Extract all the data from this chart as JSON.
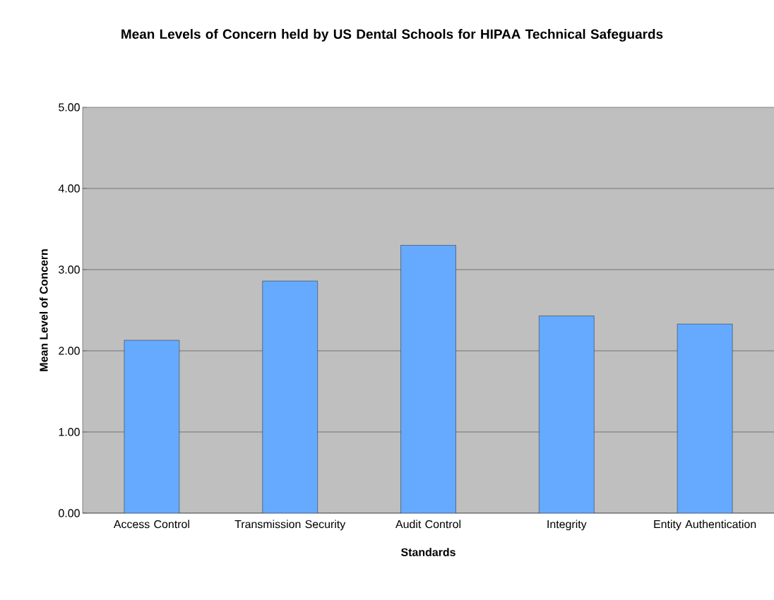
{
  "chart_data": {
    "type": "bar",
    "title": "Mean Levels of Concern held by US Dental Schools for HIPAA Technical Safeguards",
    "xlabel": "Standards",
    "ylabel": "Mean Level of Concern",
    "categories": [
      "Access Control",
      "Transmission Security",
      "Audit Control",
      "Integrity",
      "Entity Authentication"
    ],
    "values": [
      2.13,
      2.86,
      3.3,
      2.43,
      2.33
    ],
    "color": "#66aaff",
    "ylim": [
      0,
      5
    ],
    "yticks": [
      {
        "value": 0,
        "label": "0.00"
      },
      {
        "value": 1,
        "label": "1.00"
      },
      {
        "value": 2,
        "label": "2.00"
      },
      {
        "value": 3,
        "label": "3.00"
      },
      {
        "value": 4,
        "label": "4.00"
      },
      {
        "value": 5,
        "label": "5.00"
      }
    ],
    "grid": "y"
  }
}
